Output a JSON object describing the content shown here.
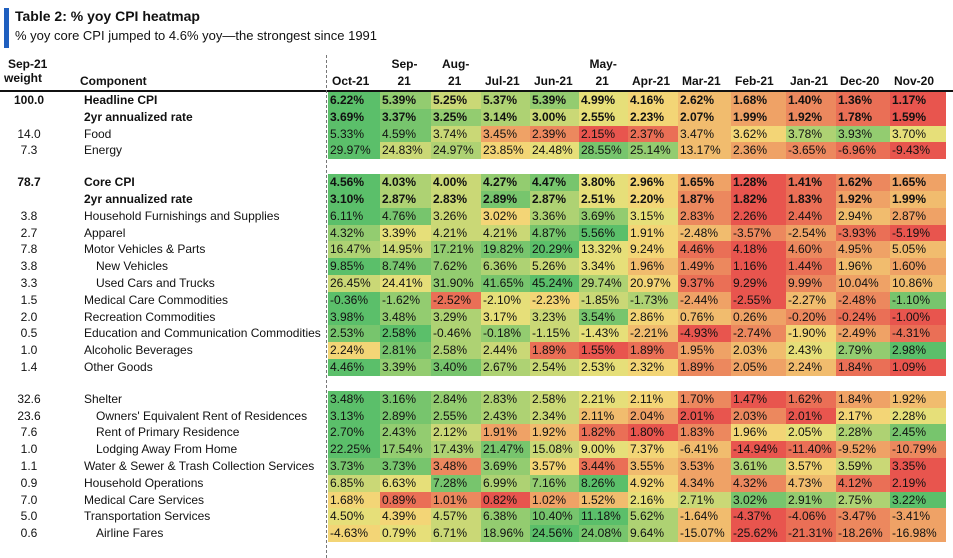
{
  "header": {
    "title": "Table 2: % yoy CPI heatmap",
    "subtitle": "% yoy core CPI jumped to 4.6% yoy—the strongest since 1991",
    "weight_label_1": "Sep-21",
    "weight_label_2": "weight",
    "component_label": "Component",
    "months": [
      [
        "",
        "Oct-21"
      ],
      [
        "Sep-",
        "21"
      ],
      [
        "Aug-",
        "21"
      ],
      [
        "",
        "Jul-21"
      ],
      [
        "",
        "Jun-21"
      ],
      [
        "May-",
        "21"
      ],
      [
        "",
        "Apr-21"
      ],
      [
        "",
        "Mar-21"
      ],
      [
        "",
        "Feb-21"
      ],
      [
        "",
        "Jan-21"
      ],
      [
        "",
        "Dec-20"
      ],
      [
        "",
        "Nov-20"
      ]
    ]
  },
  "rows": [
    {
      "weight": "100.0",
      "name": "Headline CPI",
      "indent": 0,
      "bold": true,
      "values": [
        "6.22%",
        "5.39%",
        "5.25%",
        "5.37%",
        "5.39%",
        "4.99%",
        "4.16%",
        "2.62%",
        "1.68%",
        "1.40%",
        "1.36%",
        "1.17%"
      ]
    },
    {
      "weight": "",
      "name": "2yr annualized rate",
      "indent": 0,
      "bold": true,
      "values": [
        "3.69%",
        "3.37%",
        "3.25%",
        "3.14%",
        "3.00%",
        "2.55%",
        "2.23%",
        "2.07%",
        "1.99%",
        "1.92%",
        "1.78%",
        "1.59%"
      ]
    },
    {
      "weight": "14.0",
      "name": "Food",
      "indent": 0,
      "bold": false,
      "values": [
        "5.33%",
        "4.59%",
        "3.74%",
        "3.45%",
        "2.39%",
        "2.15%",
        "2.37%",
        "3.47%",
        "3.62%",
        "3.78%",
        "3.93%",
        "3.70%"
      ]
    },
    {
      "weight": "7.3",
      "name": "Energy",
      "indent": 0,
      "bold": false,
      "values": [
        "29.97%",
        "24.83%",
        "24.97%",
        "23.85%",
        "24.48%",
        "28.55%",
        "25.14%",
        "13.17%",
        "2.36%",
        "-3.65%",
        "-6.96%",
        "-9.43%"
      ]
    },
    {
      "spacer": true
    },
    {
      "weight": "78.7",
      "name": "Core CPI",
      "indent": 0,
      "bold": true,
      "values": [
        "4.56%",
        "4.03%",
        "4.00%",
        "4.27%",
        "4.47%",
        "3.80%",
        "2.96%",
        "1.65%",
        "1.28%",
        "1.41%",
        "1.62%",
        "1.65%"
      ]
    },
    {
      "weight": "",
      "name": "2yr annualized rate",
      "indent": 0,
      "bold": true,
      "values": [
        "3.10%",
        "2.87%",
        "2.83%",
        "2.89%",
        "2.87%",
        "2.51%",
        "2.20%",
        "1.87%",
        "1.82%",
        "1.83%",
        "1.92%",
        "1.99%"
      ]
    },
    {
      "weight": "3.8",
      "name": "Household Furnishings and Supplies",
      "indent": 0,
      "bold": false,
      "values": [
        "6.11%",
        "4.76%",
        "3.26%",
        "3.02%",
        "3.36%",
        "3.69%",
        "3.15%",
        "2.83%",
        "2.26%",
        "2.44%",
        "2.94%",
        "2.87%"
      ]
    },
    {
      "weight": "2.7",
      "name": "Apparel",
      "indent": 0,
      "bold": false,
      "values": [
        "4.32%",
        "3.39%",
        "4.21%",
        "4.21%",
        "4.87%",
        "5.56%",
        "1.91%",
        "-2.48%",
        "-3.57%",
        "-2.54%",
        "-3.93%",
        "-5.19%"
      ]
    },
    {
      "weight": "7.8",
      "name": "Motor Vehicles & Parts",
      "indent": 0,
      "bold": false,
      "values": [
        "16.47%",
        "14.95%",
        "17.21%",
        "19.82%",
        "20.29%",
        "13.32%",
        "9.24%",
        "4.46%",
        "4.18%",
        "4.60%",
        "4.95%",
        "5.05%"
      ]
    },
    {
      "weight": "3.8",
      "name": "New Vehicles",
      "indent": 1,
      "bold": false,
      "values": [
        "9.85%",
        "8.74%",
        "7.62%",
        "6.36%",
        "5.26%",
        "3.34%",
        "1.96%",
        "1.49%",
        "1.16%",
        "1.44%",
        "1.96%",
        "1.60%"
      ]
    },
    {
      "weight": "3.3",
      "name": "Used Cars and Trucks",
      "indent": 1,
      "bold": false,
      "values": [
        "26.45%",
        "24.41%",
        "31.90%",
        "41.65%",
        "45.24%",
        "29.74%",
        "20.97%",
        "9.37%",
        "9.29%",
        "9.99%",
        "10.04%",
        "10.86%"
      ]
    },
    {
      "weight": "1.5",
      "name": "Medical Care Commodities",
      "indent": 0,
      "bold": false,
      "values": [
        "-0.36%",
        "-1.62%",
        "-2.52%",
        "-2.10%",
        "-2.23%",
        "-1.85%",
        "-1.73%",
        "-2.44%",
        "-2.55%",
        "-2.27%",
        "-2.48%",
        "-1.10%"
      ]
    },
    {
      "weight": "2.0",
      "name": "Recreation Commodities",
      "indent": 0,
      "bold": false,
      "values": [
        "3.98%",
        "3.48%",
        "3.29%",
        "3.17%",
        "3.23%",
        "3.54%",
        "2.86%",
        "0.76%",
        "0.26%",
        "-0.20%",
        "-0.24%",
        "-1.00%"
      ]
    },
    {
      "weight": "0.5",
      "name": "Education and Communication Commodities",
      "indent": 0,
      "bold": false,
      "values": [
        "2.53%",
        "2.58%",
        "-0.46%",
        "-0.18%",
        "-1.15%",
        "-1.43%",
        "-2.21%",
        "-4.93%",
        "-2.74%",
        "-1.90%",
        "-2.49%",
        "-4.31%"
      ]
    },
    {
      "weight": "1.0",
      "name": "Alcoholic Beverages",
      "indent": 0,
      "bold": false,
      "values": [
        "2.24%",
        "2.81%",
        "2.58%",
        "2.44%",
        "1.89%",
        "1.55%",
        "1.89%",
        "1.95%",
        "2.03%",
        "2.43%",
        "2.79%",
        "2.98%"
      ]
    },
    {
      "weight": "1.4",
      "name": "Other Goods",
      "indent": 0,
      "bold": false,
      "values": [
        "4.46%",
        "3.39%",
        "3.40%",
        "2.67%",
        "2.54%",
        "2.53%",
        "2.32%",
        "1.89%",
        "2.05%",
        "2.24%",
        "1.84%",
        "1.09%"
      ]
    },
    {
      "spacer": true
    },
    {
      "weight": "32.6",
      "name": "Shelter",
      "indent": 0,
      "bold": false,
      "values": [
        "3.48%",
        "3.16%",
        "2.84%",
        "2.83%",
        "2.58%",
        "2.21%",
        "2.11%",
        "1.70%",
        "1.47%",
        "1.62%",
        "1.84%",
        "1.92%"
      ]
    },
    {
      "weight": "23.6",
      "name": "Owners' Equivalent Rent of Residences",
      "indent": 1,
      "bold": false,
      "values": [
        "3.13%",
        "2.89%",
        "2.55%",
        "2.43%",
        "2.34%",
        "2.11%",
        "2.04%",
        "2.01%",
        "2.03%",
        "2.01%",
        "2.17%",
        "2.28%"
      ]
    },
    {
      "weight": "7.6",
      "name": "Rent of Primary Residence",
      "indent": 1,
      "bold": false,
      "values": [
        "2.70%",
        "2.43%",
        "2.12%",
        "1.91%",
        "1.92%",
        "1.82%",
        "1.80%",
        "1.83%",
        "1.96%",
        "2.05%",
        "2.28%",
        "2.45%"
      ]
    },
    {
      "weight": "1.0",
      "name": "Lodging Away From Home",
      "indent": 1,
      "bold": false,
      "values": [
        "22.25%",
        "17.54%",
        "17.43%",
        "21.47%",
        "15.08%",
        "9.00%",
        "7.37%",
        "-6.41%",
        "-14.94%",
        "-11.40%",
        "-9.52%",
        "-10.79%"
      ]
    },
    {
      "weight": "1.1",
      "name": "Water & Sewer & Trash Collection Services",
      "indent": 0,
      "bold": false,
      "values": [
        "3.73%",
        "3.73%",
        "3.48%",
        "3.69%",
        "3.57%",
        "3.44%",
        "3.55%",
        "3.53%",
        "3.61%",
        "3.57%",
        "3.59%",
        "3.35%"
      ]
    },
    {
      "weight": "0.9",
      "name": "Household Operations",
      "indent": 0,
      "bold": false,
      "values": [
        "6.85%",
        "6.63%",
        "7.28%",
        "6.99%",
        "7.16%",
        "8.26%",
        "4.92%",
        "4.34%",
        "4.32%",
        "4.73%",
        "4.12%",
        "2.19%"
      ]
    },
    {
      "weight": "7.0",
      "name": "Medical Care Services",
      "indent": 0,
      "bold": false,
      "values": [
        "1.68%",
        "0.89%",
        "1.01%",
        "0.82%",
        "1.02%",
        "1.52%",
        "2.16%",
        "2.71%",
        "3.02%",
        "2.91%",
        "2.75%",
        "3.22%"
      ]
    },
    {
      "weight": "5.0",
      "name": "Transportation Services",
      "indent": 0,
      "bold": false,
      "values": [
        "4.50%",
        "4.39%",
        "4.57%",
        "6.38%",
        "10.40%",
        "11.18%",
        "5.62%",
        "-1.64%",
        "-4.37%",
        "-4.06%",
        "-3.47%",
        "-3.41%"
      ]
    },
    {
      "weight": "0.6",
      "name": "Airline Fares",
      "indent": 1,
      "bold": false,
      "values": [
        "-4.63%",
        "0.79%",
        "6.71%",
        "18.96%",
        "24.56%",
        "24.08%",
        "9.64%",
        "-15.07%",
        "-25.62%",
        "-21.31%",
        "-18.26%",
        "-16.98%"
      ]
    }
  ],
  "colors": {
    "high": "#5bbf6a",
    "mid": "#f4e27a",
    "low": "#e8554e"
  }
}
